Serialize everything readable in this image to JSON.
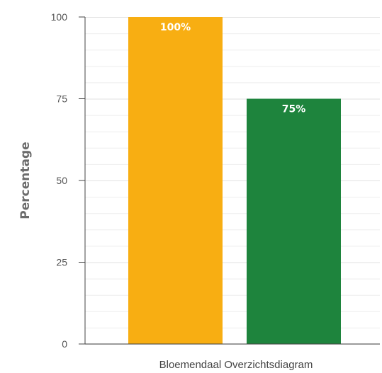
{
  "chart_data": {
    "type": "bar",
    "categories": [
      "Bloemendaal Overzichtsdiagram"
    ],
    "series": [
      {
        "values": [
          100
        ],
        "color": "#F8AE12",
        "data_label": "100%"
      },
      {
        "values": [
          75
        ],
        "color": "#1E843D",
        "data_label": "75%"
      }
    ],
    "xlabel": "Bloemendaal Overzichtsdiagram",
    "ylabel": "Percentage",
    "ylim": [
      0,
      100
    ],
    "y_ticks": [
      "0",
      "25",
      "50",
      "75",
      "100"
    ],
    "grid": true,
    "legend": "none"
  }
}
